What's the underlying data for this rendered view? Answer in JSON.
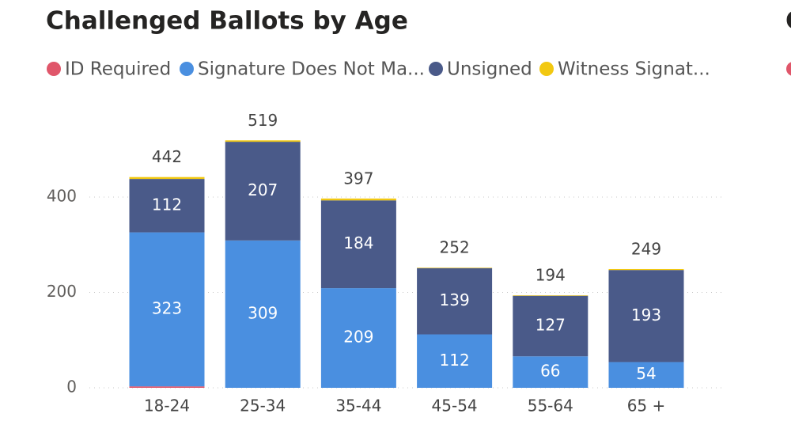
{
  "chart_data": {
    "type": "stacked_bar",
    "title": "Challenged Ballots by Age",
    "categories": [
      "18-24",
      "25-34",
      "35-44",
      "45-54",
      "55-64",
      "65 +"
    ],
    "series": [
      {
        "name": "ID Required",
        "color": "#e0566a",
        "values": [
          3,
          0,
          0,
          0,
          0,
          0
        ]
      },
      {
        "name": "Signature Does Not Ma...",
        "color": "#4a8fe0",
        "values": [
          323,
          309,
          209,
          112,
          66,
          54
        ]
      },
      {
        "name": "Unsigned",
        "color": "#4a5a89",
        "values": [
          112,
          207,
          184,
          139,
          127,
          193
        ]
      },
      {
        "name": "Witness Signat...",
        "color": "#f2c811",
        "values": [
          4,
          3,
          4,
          1,
          1,
          2
        ]
      }
    ],
    "totals": [
      442,
      519,
      397,
      252,
      194,
      249
    ],
    "ylim": [
      0,
      600
    ],
    "yticks": [
      0,
      200,
      400
    ],
    "grid": true
  },
  "partial_title": "C"
}
